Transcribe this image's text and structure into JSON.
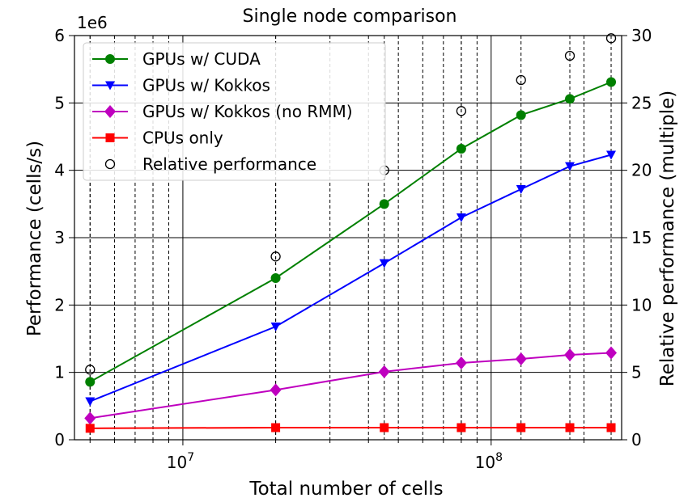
{
  "chart_data": {
    "type": "line",
    "title": "Single node comparison",
    "xlabel": "Total number of cells",
    "ylabel": "Performance (cells/s)",
    "ylabel_right": "Relative performance (multiple)",
    "y_offset_label": "1e6",
    "xscale": "log",
    "xlim": [
      4450000,
      265000000
    ],
    "ylim": [
      0,
      6
    ],
    "ylim_right": [
      0,
      30
    ],
    "x": [
      5000000,
      20000000,
      45000000,
      80000000,
      125000000,
      180000000,
      245000000
    ],
    "x_tick_labels": [
      {
        "value": 10000000,
        "base": "10",
        "exp": "7"
      },
      {
        "value": 100000000,
        "base": "10",
        "exp": "8"
      }
    ],
    "y_ticks": [
      "0",
      "1",
      "2",
      "3",
      "4",
      "5",
      "6"
    ],
    "y_right_ticks": [
      "0",
      "5",
      "10",
      "15",
      "20",
      "25",
      "30"
    ],
    "grid": "vertical dashed lines at data x positions; solid lines at powers of ten and horizontal major ticks",
    "legend_position": "top-left",
    "series": [
      {
        "name": "GPUs w/ CUDA",
        "color": "#008000",
        "marker": "circle",
        "axis": "left",
        "values": [
          0.86,
          2.4,
          3.5,
          4.32,
          4.82,
          5.06,
          5.31
        ]
      },
      {
        "name": "GPUs w/ Kokkos",
        "color": "#0000ff",
        "marker": "triangle-down",
        "axis": "left",
        "values": [
          0.57,
          1.68,
          2.62,
          3.3,
          3.72,
          4.06,
          4.23
        ]
      },
      {
        "name": "GPUs w/ Kokkos (no RMM)",
        "color": "#bf00bf",
        "marker": "diamond",
        "axis": "left",
        "values": [
          0.32,
          0.74,
          1.01,
          1.14,
          1.2,
          1.26,
          1.29
        ]
      },
      {
        "name": "CPUs only",
        "color": "#ff0000",
        "marker": "square",
        "axis": "left",
        "values": [
          0.17,
          0.18,
          0.18,
          0.18,
          0.18,
          0.18,
          0.18
        ]
      },
      {
        "name": "Relative performance",
        "color": "#000000",
        "marker": "open-circle",
        "axis": "right",
        "values": [
          5.2,
          13.6,
          20.0,
          24.4,
          26.7,
          28.5,
          29.8
        ]
      }
    ]
  }
}
